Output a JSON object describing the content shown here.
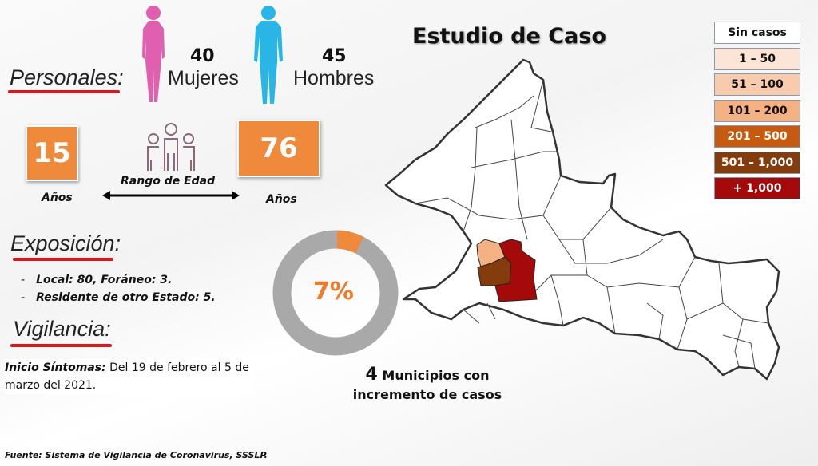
{
  "title": "Estudio de Caso",
  "personales": {
    "heading": "Personales:",
    "women_count": "40",
    "women_label": "Mujeres",
    "men_count": "45",
    "men_label": "Hombres",
    "women_color": "#e05fae",
    "men_color": "#29b6e6"
  },
  "edad": {
    "min": "15",
    "max": "76",
    "min_unit": "Años",
    "max_unit": "Años",
    "label": "Rango de Edad"
  },
  "exposicion": {
    "heading": "Exposición:",
    "items": [
      "Local: 80, Foráneo: 3.",
      "Residente de otro Estado: 5."
    ]
  },
  "vigilancia": {
    "heading": "Vigilancia:",
    "label": "Inicio Síntomas:",
    "text": " Del 19 de febrero al 5 de marzo del 2021."
  },
  "donut": {
    "percent_label": "7%",
    "value": 7,
    "color": "#ef8a3c",
    "rest_color": "#a9a9a9"
  },
  "municipios": {
    "count": "4",
    "line1": "Municipios con",
    "line2": "incremento de casos"
  },
  "legend": [
    {
      "label": "Sin casos",
      "color": "#ffffff",
      "text": "#111"
    },
    {
      "label": "1 – 50",
      "color": "#fce4d6",
      "text": "#111"
    },
    {
      "label": "51 – 100",
      "color": "#f8cbad",
      "text": "#111"
    },
    {
      "label": "101 – 200",
      "color": "#f4b183",
      "text": "#111"
    },
    {
      "label": "201 – 500",
      "color": "#c55a11",
      "text": "#fff"
    },
    {
      "label": "501 – 1,000",
      "color": "#843c0c",
      "text": "#fff"
    },
    {
      "label": "+ 1,000",
      "color": "#a50a0a",
      "text": "#fff"
    }
  ],
  "source": "Fuente: Sistema de Vigilancia de Coronavirus, SSSLP."
}
